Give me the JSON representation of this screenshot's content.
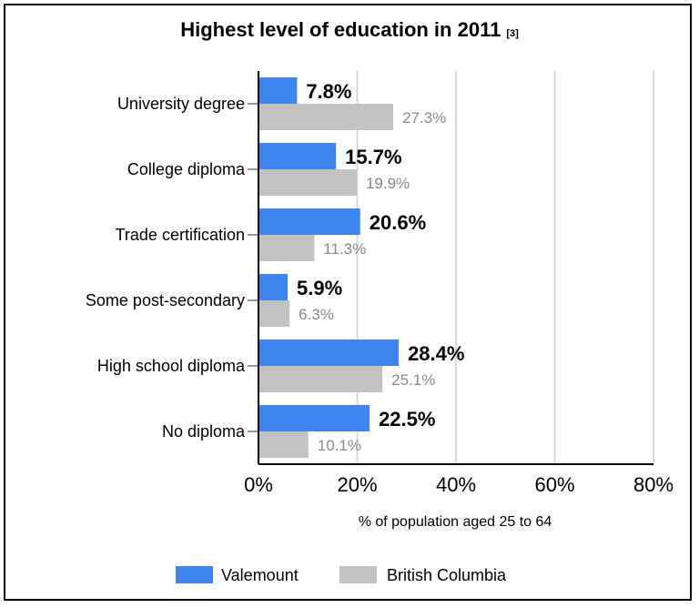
{
  "chart_data": {
    "type": "bar",
    "orientation": "horizontal",
    "title": "Highest level of education in 2011",
    "title_ref": "[3]",
    "categories": [
      "University degree",
      "College diploma",
      "Trade certification",
      "Some post-secondary",
      "High school diploma",
      "No diploma"
    ],
    "series": [
      {
        "name": "Valemount",
        "color": "#3d85f0",
        "values": [
          7.8,
          15.7,
          20.6,
          5.9,
          28.4,
          22.5
        ],
        "labels": [
          "7.8%",
          "15.7%",
          "20.6%",
          "5.9%",
          "28.4%",
          "22.5%"
        ]
      },
      {
        "name": "British Columbia",
        "color": "#c2c2c2",
        "values": [
          27.3,
          19.9,
          11.3,
          6.3,
          25.1,
          10.1
        ],
        "labels": [
          "27.3%",
          "19.9%",
          "11.3%",
          "6.3%",
          "25.1%",
          "10.1%"
        ]
      }
    ],
    "xlabel": "% of population aged 25 to 64",
    "xlim": [
      0,
      80
    ],
    "xticks": [
      0,
      20,
      40,
      60,
      80
    ],
    "xtick_labels": [
      "0%",
      "20%",
      "40%",
      "60%",
      "80%"
    ],
    "grid": true,
    "legend_position": "bottom"
  }
}
